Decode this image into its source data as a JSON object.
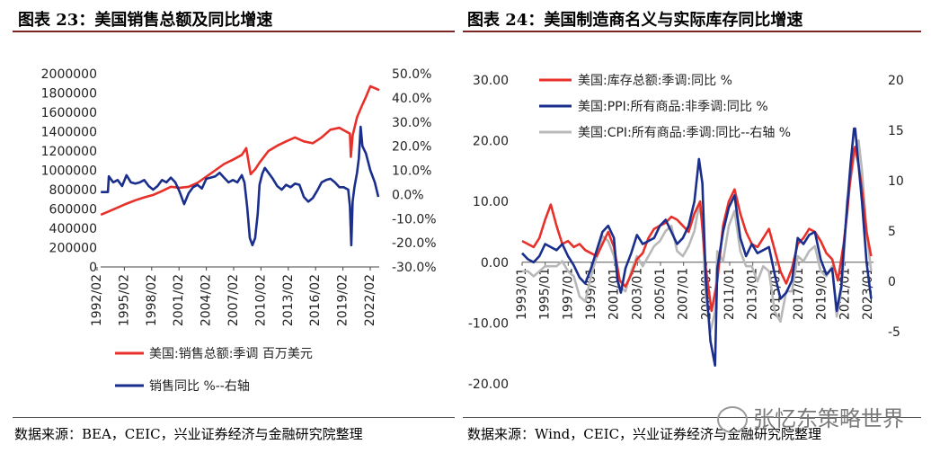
{
  "left_title": "图表 23：美国销售总额及同比增速",
  "right_title": "图表 24：美国制造商名义与实际库存同比增速",
  "left_source": "数据来源：BEA，CEIC，兴业证券经济与金融研究院整理",
  "right_source": "数据来源：Wind，CEIC，兴业证券经济与金融研究院整理",
  "watermark": "张忆东策略世界",
  "colors": {
    "red": "#e8302a",
    "navy": "#1a2e8c",
    "gray": "#b8b8b8",
    "rule": "#7a2424"
  },
  "chart_data": [
    {
      "type": "line",
      "title": "图表 23：美国销售总额及同比增速",
      "x_tick_labels": [
        "1992/02",
        "1995/02",
        "1998/02",
        "2001/02",
        "2004/02",
        "2007/02",
        "2010/02",
        "2013/02",
        "2016/02",
        "2019/02",
        "2022/02"
      ],
      "x_range": [
        1992.08,
        2023.5
      ],
      "y_left_ticks": [
        "2000000",
        "1800000",
        "1600000",
        "1400000",
        "1200000",
        "1000000",
        "800000",
        "600000",
        "400000",
        "200000",
        "0"
      ],
      "y_left_range": [
        0,
        2000000
      ],
      "y_right_ticks": [
        "50.0%",
        "40.0%",
        "30.0%",
        "20.0%",
        "10.0%",
        "0.0%",
        "-10.0%",
        "-20.0%",
        "-30.0%"
      ],
      "y_right_range": [
        -30,
        50
      ],
      "legend_position": "bottom",
      "series": [
        {
          "name": "美国:销售总额:季调 百万美元",
          "axis": "left",
          "color": "#e8302a",
          "x": [
            1992.1,
            1993,
            1994,
            1995,
            1996,
            1997,
            1998,
            1999,
            2000,
            2001,
            2002,
            2003,
            2004,
            2005,
            2006,
            2007,
            2008,
            2008.5,
            2009,
            2009.5,
            2010,
            2011,
            2012,
            2013,
            2014,
            2015,
            2016,
            2017,
            2018,
            2019,
            2020.2,
            2020.3,
            2020.5,
            2021,
            2021.5,
            2022,
            2022.5,
            2023,
            2023.5
          ],
          "y": [
            540000,
            575000,
            615000,
            655000,
            690000,
            720000,
            745000,
            785000,
            830000,
            820000,
            830000,
            870000,
            935000,
            1000000,
            1065000,
            1110000,
            1160000,
            1230000,
            960000,
            1010000,
            1080000,
            1200000,
            1255000,
            1300000,
            1340000,
            1300000,
            1280000,
            1340000,
            1420000,
            1440000,
            1380000,
            1140000,
            1360000,
            1550000,
            1660000,
            1760000,
            1870000,
            1850000,
            1830000
          ]
        },
        {
          "name": "销售同比 %--右轴",
          "axis": "right",
          "color": "#1a2e8c",
          "x": [
            1992.1,
            1992.9,
            1993,
            1993.5,
            1994,
            1994.5,
            1995,
            1995.5,
            1996,
            1996.5,
            1997,
            1997.5,
            1998,
            1998.5,
            1999,
            1999.5,
            2000,
            2000.5,
            2001,
            2001.5,
            2002,
            2002.5,
            2003,
            2003.5,
            2004,
            2004.5,
            2005,
            2005.5,
            2006,
            2006.5,
            2007,
            2007.5,
            2008,
            2008.3,
            2008.6,
            2008.9,
            2009.2,
            2009.5,
            2009.8,
            2010,
            2010.3,
            2010.6,
            2011,
            2011.5,
            2012,
            2012.5,
            2013,
            2013.5,
            2014,
            2014.5,
            2015,
            2015.5,
            2016,
            2016.5,
            2017,
            2017.5,
            2018,
            2018.5,
            2019,
            2019.5,
            2020,
            2020.2,
            2020.35,
            2020.5,
            2020.7,
            2021,
            2021.2,
            2021.4,
            2021.6,
            2022,
            2022.5,
            2023,
            2023.4
          ],
          "y": [
            1.0,
            1.0,
            7.5,
            5,
            6,
            3.5,
            8,
            5,
            4.5,
            5,
            6,
            3.5,
            2,
            3.5,
            6,
            5,
            7,
            5,
            1,
            -4,
            0.5,
            3,
            4,
            2.5,
            6.5,
            7,
            7.5,
            9,
            7,
            5,
            6,
            5,
            8,
            5,
            -5,
            -18,
            -21,
            -18,
            -8,
            4,
            8.5,
            11,
            9,
            6.5,
            3.5,
            2,
            4,
            3,
            4.5,
            4,
            -1,
            -3,
            -1.5,
            1.5,
            5,
            6,
            6.5,
            5,
            3,
            3,
            2,
            -5,
            -21,
            -3,
            3,
            9,
            15,
            28,
            20,
            17,
            10,
            5,
            -1
          ]
        }
      ]
    },
    {
      "type": "line",
      "title": "图表 24：美国制造商名义与实际库存同比增速",
      "x_tick_labels": [
        "1993/01",
        "1995/01",
        "1997/01",
        "1999/01",
        "2001/01",
        "2003/01",
        "2005/01",
        "2007/01",
        "2009/01",
        "2011/01",
        "2013/01",
        "2015/01",
        "2017/01",
        "2019/01",
        "2021/01",
        "2023/01"
      ],
      "x_range": [
        1993,
        2023.6
      ],
      "y_left_ticks": [
        "30.00",
        "20.00",
        "10.00",
        "0.00",
        "-10.00",
        "-20.00"
      ],
      "y_left_range": [
        -20,
        30
      ],
      "y_right_ticks": [
        "20",
        "15",
        "10",
        "5",
        "0",
        "-5"
      ],
      "y_right_range": [
        -10,
        20
      ],
      "legend_position": "top-left",
      "series": [
        {
          "name": "美国:库存总额:季调:同比 %",
          "axis": "left",
          "color": "#e8302a",
          "x": [
            1993,
            1993.5,
            1994,
            1994.5,
            1995,
            1995.5,
            1996,
            1996.5,
            1997,
            1997.5,
            1998,
            1998.5,
            1999,
            1999.5,
            2000,
            2000.5,
            2001,
            2001.5,
            2002,
            2002.5,
            2003,
            2003.5,
            2004,
            2004.5,
            2005,
            2005.5,
            2006,
            2006.5,
            2007,
            2007.5,
            2008,
            2008.5,
            2009,
            2009.5,
            2010,
            2010.5,
            2011,
            2011.5,
            2012,
            2012.5,
            2013,
            2013.5,
            2014,
            2014.5,
            2015,
            2015.5,
            2016,
            2016.5,
            2017,
            2017.5,
            2018,
            2018.5,
            2019,
            2019.5,
            2020,
            2020.5,
            2021,
            2021.3,
            2021.6,
            2021.9,
            2022,
            2022.3,
            2022.6,
            2023,
            2023.4
          ],
          "y": [
            3.5,
            3,
            2.5,
            4,
            7,
            9.5,
            6,
            3,
            3.5,
            2.5,
            3,
            2,
            1.5,
            1,
            3,
            5,
            2.5,
            -3,
            -4,
            -2,
            0.5,
            1.5,
            4,
            5.5,
            6,
            6.5,
            7.5,
            7,
            6,
            5,
            8,
            10,
            -1,
            -8,
            -3,
            6,
            10,
            12,
            8,
            5,
            3,
            2.5,
            4,
            5.5,
            2,
            -1.5,
            -3.5,
            -1,
            3,
            4,
            5.5,
            5,
            3.5,
            1.5,
            0.5,
            -3,
            3,
            8,
            14,
            18.5,
            19,
            16,
            12,
            5,
            1
          ]
        },
        {
          "name": "美国:PPI:所有商品:非季调:同比 %",
          "axis": "left",
          "color": "#1a2e8c",
          "x": [
            1993,
            1993.5,
            1994,
            1994.5,
            1995,
            1995.5,
            1996,
            1996.5,
            1997,
            1997.5,
            1998,
            1998.5,
            1999,
            1999.5,
            2000,
            2000.5,
            2001,
            2001.3,
            2001.6,
            2002,
            2002.5,
            2003,
            2003.5,
            2004,
            2004.5,
            2005,
            2005.5,
            2006,
            2006.5,
            2007,
            2007.5,
            2008,
            2008.4,
            2008.7,
            2009,
            2009.4,
            2009.8,
            2010,
            2010.5,
            2011,
            2011.5,
            2012,
            2012.5,
            2013,
            2013.5,
            2014,
            2014.5,
            2015,
            2015.5,
            2016,
            2016.5,
            2017,
            2017.5,
            2018,
            2018.5,
            2019,
            2019.5,
            2020,
            2020.4,
            2020.8,
            2021,
            2021.3,
            2021.6,
            2021.9,
            2022,
            2022.3,
            2022.6,
            2023,
            2023.4
          ],
          "y": [
            1.5,
            0.5,
            0,
            1,
            3,
            2.5,
            2,
            3,
            1,
            -0.5,
            -2.5,
            -3.5,
            -1,
            2,
            5,
            6,
            4,
            -3,
            -5,
            -1,
            1.5,
            4.5,
            3,
            3.5,
            4,
            6,
            7,
            5,
            3,
            4,
            6,
            10,
            17,
            13,
            -3,
            -13,
            -17,
            -1,
            5,
            9,
            11,
            4,
            1,
            3,
            1.5,
            2,
            2.5,
            -2,
            -6,
            -5,
            -3,
            4,
            3,
            4.5,
            5,
            0.5,
            -2,
            -1,
            -8,
            -4,
            2,
            9,
            16,
            22,
            22,
            16,
            10,
            0,
            -6
          ]
        },
        {
          "name": "美国:CPI:所有商品:季调:同比--右轴 %",
          "axis": "right",
          "color": "#b8b8b8",
          "x": [
            1993,
            1993.5,
            1994,
            1994.5,
            1995,
            1995.5,
            1996,
            1996.5,
            1997,
            1997.5,
            1998,
            1998.5,
            1999,
            1999.5,
            2000,
            2000.5,
            2001,
            2001.5,
            2002,
            2002.5,
            2003,
            2003.5,
            2004,
            2004.5,
            2005,
            2005.5,
            2006,
            2006.5,
            2007,
            2007.5,
            2008,
            2008.4,
            2008.7,
            2009,
            2009.4,
            2009.8,
            2010,
            2010.5,
            2011,
            2011.5,
            2012,
            2012.5,
            2013,
            2013.5,
            2014,
            2014.5,
            2015,
            2015.5,
            2016,
            2016.5,
            2017,
            2017.5,
            2018,
            2018.5,
            2019,
            2019.5,
            2020,
            2020.4,
            2020.8,
            2021,
            2021.3,
            2021.6,
            2022,
            2022.3,
            2022.6,
            2023,
            2023.4
          ],
          "y": [
            1,
            1,
            0.5,
            1,
            1.5,
            1.5,
            1.5,
            2,
            1,
            0.5,
            -1.5,
            -2,
            0.5,
            2.5,
            4.5,
            4,
            2.5,
            -0.5,
            -1,
            1,
            2.5,
            1.5,
            2.5,
            3.5,
            4,
            5,
            5.5,
            3,
            2.5,
            3.5,
            5,
            7.5,
            6,
            -1.5,
            -5,
            -3,
            3,
            2,
            5.5,
            7,
            3,
            1.5,
            1.5,
            0,
            1.5,
            1,
            -3,
            -4,
            -1,
            -1,
            2.5,
            2,
            3,
            3.5,
            1,
            0.5,
            1.5,
            -3.5,
            -1,
            2,
            8,
            10,
            13,
            14,
            11,
            5,
            1
          ]
        }
      ]
    }
  ]
}
